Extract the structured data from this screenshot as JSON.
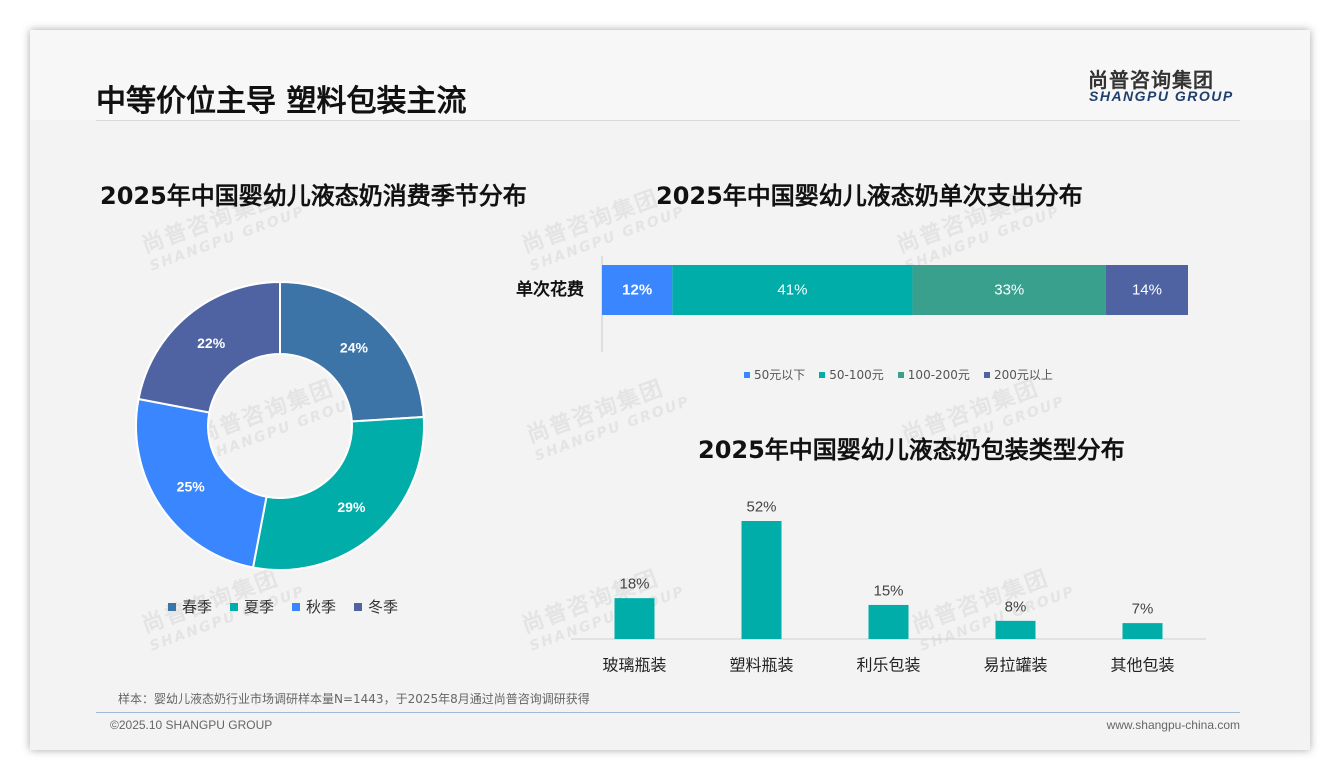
{
  "header": {
    "title": "中等价位主导 塑料包装主流",
    "logo_cn": "尚普咨询集团",
    "logo_en": "SHANGPU GROUP"
  },
  "watermark": {
    "cn": "尚普咨询集团",
    "en": "SHANGPU GROUP"
  },
  "charts": {
    "season_title": "2025年中国婴幼儿液态奶消费季节分布",
    "spend_title": "2025年中国婴幼儿液态奶单次支出分布",
    "package_title": "2025年中国婴幼儿液态奶包装类型分布"
  },
  "chart_data": [
    {
      "type": "pie",
      "variant": "donut",
      "title": "2025年中国婴幼儿液态奶消费季节分布",
      "categories": [
        "春季",
        "夏季",
        "秋季",
        "冬季"
      ],
      "values": [
        24,
        29,
        25,
        22
      ],
      "labels": [
        "24%",
        "29%",
        "25%",
        "22%"
      ],
      "colors": [
        "#3d74a8",
        "#00ada8",
        "#3a86ff",
        "#4f63a3"
      ],
      "legend": "bottom"
    },
    {
      "type": "bar",
      "variant": "stacked-horizontal-100",
      "title": "2025年中国婴幼儿液态奶单次支出分布",
      "categories": [
        "单次花费"
      ],
      "series": [
        {
          "name": "50元以下",
          "values": [
            12
          ],
          "label": "12%",
          "color": "#3a86ff"
        },
        {
          "name": "50-100元",
          "values": [
            41
          ],
          "label": "41%",
          "color": "#00ada8"
        },
        {
          "name": "100-200元",
          "values": [
            33
          ],
          "label": "33%",
          "color": "#3aa08e"
        },
        {
          "name": "200元以上",
          "values": [
            14
          ],
          "label": "14%",
          "color": "#4f63a3"
        }
      ],
      "legend": "bottom"
    },
    {
      "type": "bar",
      "title": "2025年中国婴幼儿液态奶包装类型分布",
      "categories": [
        "玻璃瓶装",
        "塑料瓶装",
        "利乐包装",
        "易拉罐装",
        "其他包装"
      ],
      "values": [
        18,
        52,
        15,
        8,
        7
      ],
      "labels": [
        "18%",
        "52%",
        "15%",
        "8%",
        "7%"
      ],
      "color": "#00ada8"
    }
  ],
  "footer": {
    "note": "样本：婴幼儿液态奶行业市场调研样本量N=1443，于2025年8月通过尚普咨询调研获得",
    "copyright": "©2025.10 SHANGPU GROUP",
    "site": "www.shangpu-china.com"
  }
}
